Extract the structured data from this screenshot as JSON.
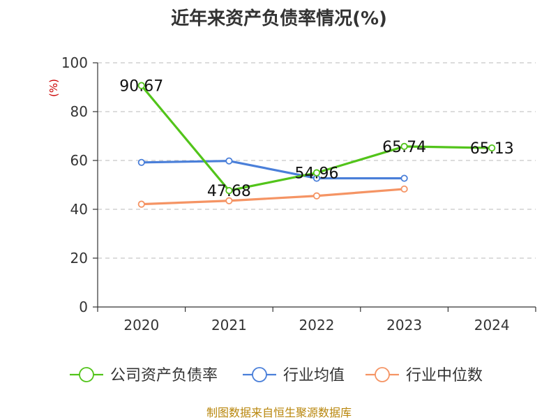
{
  "title": "近年来资产负债率情况(%)",
  "footer": "制图数据来自恒生聚源数据库",
  "chart_data": {
    "type": "line",
    "ylabel": "(%)",
    "categories": [
      "2020",
      "2021",
      "2022",
      "2023",
      "2024"
    ],
    "ylim": [
      0,
      100
    ],
    "yticks": [
      0,
      20,
      40,
      60,
      80,
      100
    ],
    "grid": true,
    "legend_position": "bottom",
    "series": [
      {
        "name": "公司资产负债率",
        "color": "#52c41a",
        "values": [
          90.67,
          47.68,
          54.96,
          65.74,
          65.13
        ],
        "labels": [
          "90.67",
          "47.68",
          "54.96",
          "65.74",
          "65.13"
        ]
      },
      {
        "name": "行业均值",
        "color": "#4a7fd9",
        "values": [
          59.2,
          59.8,
          52.7,
          52.7,
          null
        ]
      },
      {
        "name": "行业中位数",
        "color": "#f59464",
        "values": [
          42.1,
          43.5,
          45.5,
          48.3,
          null
        ]
      }
    ]
  }
}
